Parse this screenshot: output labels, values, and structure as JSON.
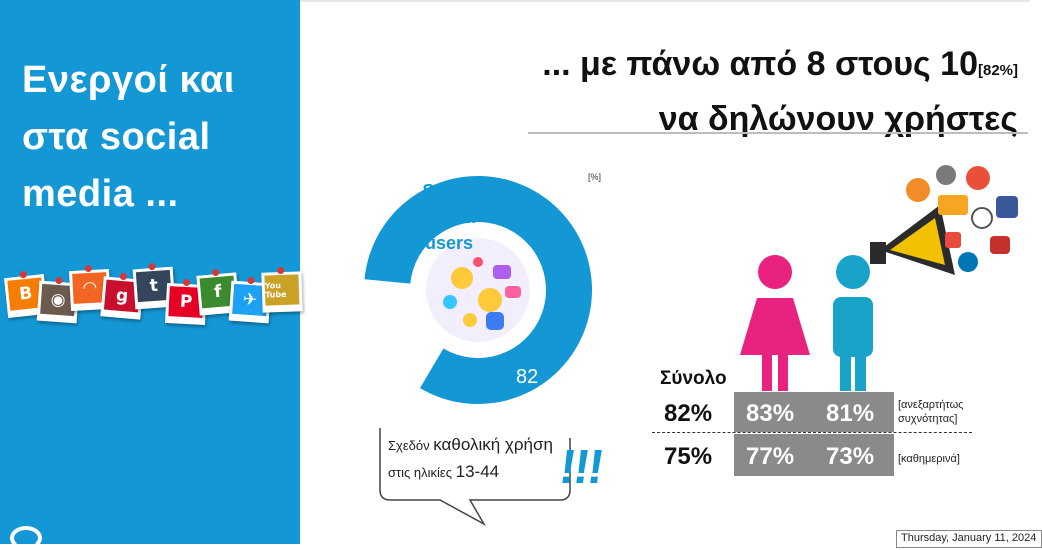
{
  "sidebar": {
    "title_lines": [
      "Ενεργοί και",
      "στα social",
      "media ..."
    ],
    "icons": [
      {
        "name": "blogger-icon",
        "glyph": "B",
        "color": "#f57d00"
      },
      {
        "name": "camera-icon",
        "glyph": "◉",
        "color": "#6b5a4e"
      },
      {
        "name": "rss-icon",
        "glyph": "◠",
        "color": "#f26522"
      },
      {
        "name": "google-plus-icon",
        "glyph": "g",
        "color": "#c8102e"
      },
      {
        "name": "tumblr-icon",
        "glyph": "t",
        "color": "#35465c"
      },
      {
        "name": "pinterest-icon",
        "glyph": "P",
        "color": "#e60023"
      },
      {
        "name": "facebook-icon",
        "glyph": "f",
        "color": "#3b8a2e"
      },
      {
        "name": "twitter-icon",
        "glyph": "✈",
        "color": "#1da1f2"
      },
      {
        "name": "youtube-icon",
        "glyph": "You Tube",
        "color": "#c9a227"
      }
    ]
  },
  "header": {
    "title_line1": "... με πάνω από 8 στους 10",
    "title_pct": "[82%]",
    "title_line2": "να δηλώνουν χρήστες"
  },
  "chart_data": [
    {
      "type": "pie",
      "unit": "[%]",
      "label": "Social media users",
      "values": [
        82,
        18
      ],
      "value_label": "82",
      "colors": [
        "#1497d5",
        "#ffffff"
      ]
    },
    {
      "type": "table",
      "row_title": "Σύνολο",
      "columns": [
        "Σύνολο",
        "women",
        "men"
      ],
      "rows": [
        {
          "total": "82%",
          "women": "83%",
          "men": "81%",
          "note_lines": [
            "[ανεξαρτήτως",
            "συχνότητας]"
          ]
        },
        {
          "total": "75%",
          "women": "77%",
          "men": "73%",
          "note_lines": [
            "[καθημερινά]"
          ]
        }
      ]
    }
  ],
  "callout": {
    "line1_small": "Σχεδόν",
    "line1_big": "καθολική χρήση",
    "line2_small": "στις ηλικίες",
    "line2_big": "13-44",
    "exclaim": "!!!"
  },
  "colors": {
    "accent": "#1497d5",
    "women": "#e8237f",
    "men": "#1aa3c9",
    "grey_box": "#8a8a8a"
  },
  "footer": {
    "date": "Thursday, January 11, 2024"
  }
}
